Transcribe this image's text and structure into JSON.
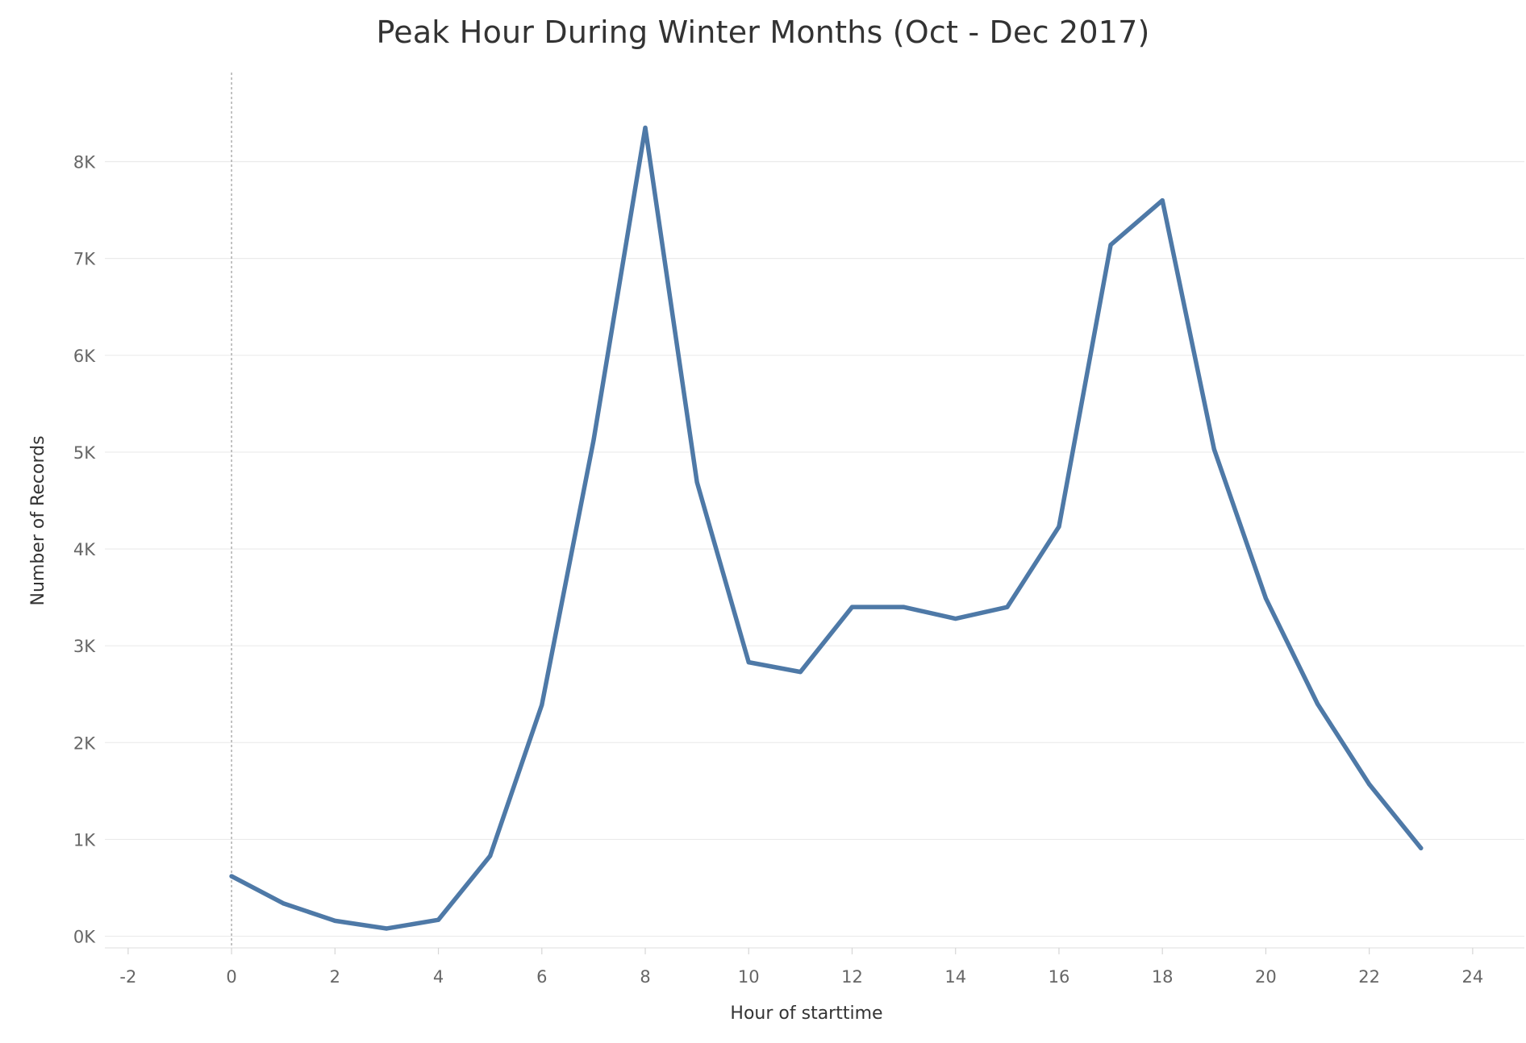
{
  "chart_data": {
    "type": "line",
    "title": "Peak Hour During Winter Months (Oct - Dec 2017)",
    "xlabel": "Hour of starttime",
    "ylabel": "Number of Records",
    "x_ticks": [
      {
        "value": -2,
        "label": "-2"
      },
      {
        "value": 0,
        "label": "0"
      },
      {
        "value": 2,
        "label": "2"
      },
      {
        "value": 4,
        "label": "4"
      },
      {
        "value": 6,
        "label": "6"
      },
      {
        "value": 8,
        "label": "8"
      },
      {
        "value": 10,
        "label": "10"
      },
      {
        "value": 12,
        "label": "12"
      },
      {
        "value": 14,
        "label": "14"
      },
      {
        "value": 16,
        "label": "16"
      },
      {
        "value": 18,
        "label": "18"
      },
      {
        "value": 20,
        "label": "20"
      },
      {
        "value": 22,
        "label": "22"
      },
      {
        "value": 24,
        "label": "24"
      }
    ],
    "y_ticks": [
      {
        "value": 0,
        "label": "0K"
      },
      {
        "value": 1000,
        "label": "1K"
      },
      {
        "value": 2000,
        "label": "2K"
      },
      {
        "value": 3000,
        "label": "3K"
      },
      {
        "value": 4000,
        "label": "4K"
      },
      {
        "value": 5000,
        "label": "5K"
      },
      {
        "value": 6000,
        "label": "6K"
      },
      {
        "value": 7000,
        "label": "7K"
      },
      {
        "value": 8000,
        "label": "8K"
      }
    ],
    "xlim": [
      -2.45,
      25
    ],
    "ylim": [
      -120,
      8920
    ],
    "grid": true,
    "reference_line_x": 0,
    "series": [
      {
        "color": "#4e79a7",
        "x": [
          0,
          1,
          2,
          3,
          4,
          5,
          6,
          7,
          8,
          9,
          10,
          11,
          12,
          13,
          14,
          15,
          16,
          17,
          18,
          19,
          20,
          21,
          22,
          23
        ],
        "y": [
          620,
          340,
          160,
          80,
          170,
          830,
          2390,
          5120,
          8350,
          4690,
          2830,
          2730,
          3400,
          3400,
          3280,
          3400,
          4230,
          7140,
          7600,
          5030,
          3490,
          2400,
          1570,
          910
        ]
      }
    ]
  }
}
